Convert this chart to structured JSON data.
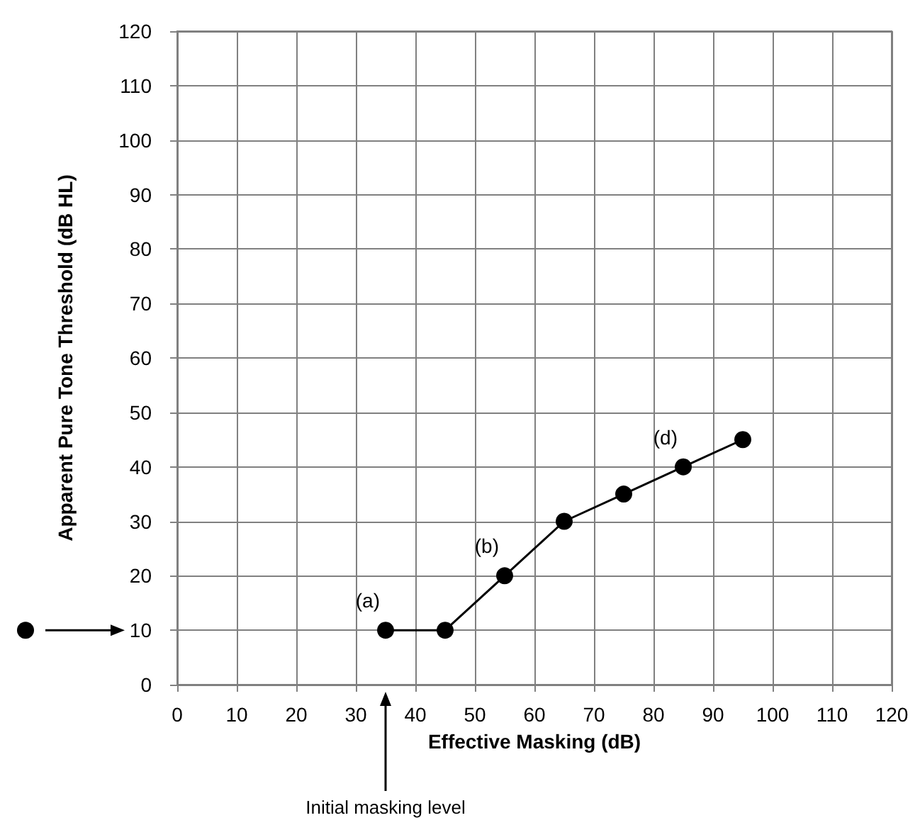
{
  "chart_data": {
    "type": "line",
    "xlabel": "Effective Masking (dB)",
    "ylabel": "Apparent Pure Tone Threshold (dB HL)",
    "x": [
      35,
      45,
      55,
      65,
      75,
      85,
      95
    ],
    "values": [
      10,
      10,
      20,
      30,
      35,
      40,
      45
    ],
    "color": "#000000",
    "marker": "circle",
    "line_style": "solid",
    "xlim": [
      0,
      120
    ],
    "xticks": [
      0,
      10,
      20,
      30,
      40,
      50,
      60,
      70,
      80,
      90,
      100,
      110,
      120
    ],
    "ylim": [
      0,
      120
    ],
    "yticks": [
      0,
      10,
      20,
      30,
      40,
      50,
      60,
      70,
      80,
      90,
      100,
      110,
      120
    ],
    "grid": true,
    "annotations": [
      {
        "text": "(a)",
        "x": 35,
        "y": 10
      },
      {
        "text": "(b)",
        "x": 55,
        "y": 20
      },
      {
        "text": "(d)",
        "x": 85,
        "y": 40
      },
      "Initial masking level"
    ]
  }
}
